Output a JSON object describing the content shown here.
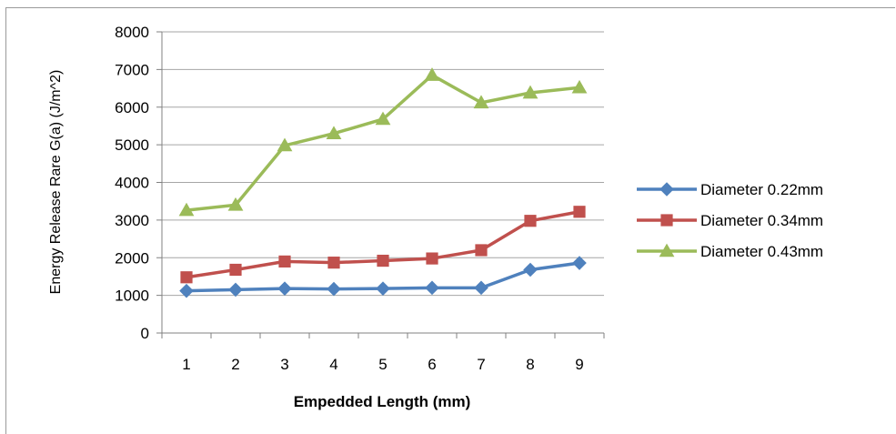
{
  "chart_data": {
    "type": "line",
    "title": "",
    "xlabel": "Empedded Length (mm)",
    "ylabel": "Energy Release Rare G(a) (J/m^2)",
    "categories": [
      "1",
      "2",
      "3",
      "4",
      "5",
      "6",
      "7",
      "8",
      "9"
    ],
    "ylim": [
      0,
      8000
    ],
    "yticks": [
      0,
      1000,
      2000,
      3000,
      4000,
      5000,
      6000,
      7000,
      8000
    ],
    "grid": true,
    "legend_position": "right",
    "series": [
      {
        "name": "Diameter 0.22mm",
        "color": "#4f81bd",
        "marker": "diamond",
        "values": [
          1120,
          1150,
          1180,
          1170,
          1180,
          1200,
          1200,
          1680,
          1860
        ]
      },
      {
        "name": "Diameter 0.34mm",
        "color": "#c0504d",
        "marker": "square",
        "values": [
          1480,
          1680,
          1900,
          1870,
          1920,
          1980,
          2200,
          2980,
          3220
        ]
      },
      {
        "name": "Diameter 0.43mm",
        "color": "#9bbb59",
        "marker": "triangle",
        "values": [
          3260,
          3400,
          4980,
          5300,
          5680,
          6850,
          6120,
          6380,
          6520
        ]
      }
    ]
  }
}
